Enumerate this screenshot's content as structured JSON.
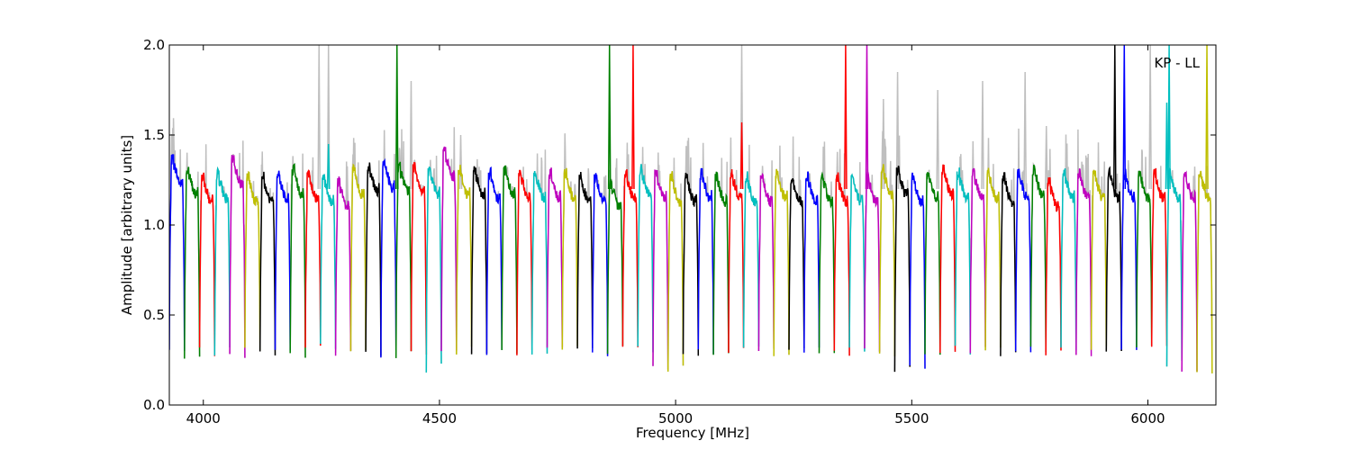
{
  "chart_data": {
    "type": "line",
    "xlabel": "Frequency [MHz]",
    "ylabel": "Amplitude [arbitrary units]",
    "xlim": [
      3928,
      6144
    ],
    "ylim": [
      0.0,
      2.0
    ],
    "x_ticks": [
      4000,
      4500,
      5000,
      5500,
      6000
    ],
    "x_tick_labels": [
      "4000",
      "4500",
      "5000",
      "5500",
      "6000"
    ],
    "y_ticks": [
      0.0,
      0.5,
      1.0,
      1.5,
      2.0
    ],
    "y_tick_labels": [
      "0.0",
      "0.5",
      "1.0",
      "1.5",
      "2.0"
    ],
    "annotation": "KP - LL",
    "grid": false,
    "colors": {
      "raw": "#bfbfbf",
      "cycle": [
        "#0000ff",
        "#008000",
        "#ff0000",
        "#00bfbf",
        "#bf00bf",
        "#bfbf00",
        "#000000"
      ]
    },
    "channel_start": 3928,
    "channel_width": 32,
    "channel_count": 69,
    "channel_levels": [
      1.28,
      1.22,
      1.18,
      1.2,
      1.28,
      1.18,
      1.18,
      1.2,
      1.22,
      1.2,
      1.18,
      1.15,
      1.22,
      1.24,
      1.26,
      1.24,
      1.24,
      1.22,
      1.32,
      1.22,
      1.22,
      1.2,
      1.22,
      1.2,
      1.2,
      1.2,
      1.2,
      1.18,
      1.18,
      1.15,
      1.2,
      1.22,
      1.2,
      1.18,
      1.18,
      1.2,
      1.18,
      1.2,
      1.18,
      1.18,
      1.2,
      1.18,
      1.18,
      1.18,
      1.18,
      1.18,
      1.18,
      1.22,
      1.22,
      1.18,
      1.2,
      1.22,
      1.2,
      1.2,
      1.2,
      1.18,
      1.2,
      1.22,
      1.15,
      1.2,
      1.2,
      1.2,
      1.2,
      1.2,
      1.2,
      1.2,
      1.2,
      1.2,
      1.2
    ],
    "channel_dips": [
      0.3,
      0.27,
      0.3,
      0.3,
      0.28,
      0.29,
      0.29,
      0.3,
      0.28,
      0.3,
      0.32,
      0.3,
      0.3,
      0.3,
      0.29,
      0.28,
      0.28,
      0.2,
      0.3,
      0.3,
      0.3,
      0.3,
      0.3,
      0.3,
      0.3,
      0.3,
      0.3,
      0.3,
      0.3,
      0.3,
      0.3,
      0.3,
      0.2,
      0.2,
      0.3,
      0.3,
      0.3,
      0.3,
      0.3,
      0.3,
      0.3,
      0.3,
      0.3,
      0.3,
      0.3,
      0.3,
      0.3,
      0.3,
      0.2,
      0.22,
      0.3,
      0.3,
      0.3,
      0.3,
      0.3,
      0.3,
      0.3,
      0.3,
      0.3,
      0.3,
      0.3,
      0.3,
      0.3,
      0.3,
      0.3,
      0.3,
      0.24,
      0.2,
      0.2
    ],
    "spikes": [
      {
        "x": 4245,
        "y": 2.0,
        "series": "raw"
      },
      {
        "x": 4265,
        "y": 2.0,
        "series": "raw"
      },
      {
        "x": 4265,
        "y": 1.45,
        "series": "color"
      },
      {
        "x": 4410,
        "y": 2.0,
        "series": "color"
      },
      {
        "x": 4440,
        "y": 1.8,
        "series": "raw"
      },
      {
        "x": 4545,
        "y": 1.5,
        "series": "raw"
      },
      {
        "x": 4860,
        "y": 2.0,
        "series": "color"
      },
      {
        "x": 4910,
        "y": 2.0,
        "series": "color"
      },
      {
        "x": 5140,
        "y": 2.0,
        "series": "raw"
      },
      {
        "x": 5140,
        "y": 1.57,
        "series": "color"
      },
      {
        "x": 5360,
        "y": 2.0,
        "series": "color"
      },
      {
        "x": 5405,
        "y": 2.0,
        "series": "color"
      },
      {
        "x": 5440,
        "y": 1.7,
        "series": "raw"
      },
      {
        "x": 5470,
        "y": 1.85,
        "series": "raw"
      },
      {
        "x": 5555,
        "y": 1.75,
        "series": "raw"
      },
      {
        "x": 5650,
        "y": 1.8,
        "series": "raw"
      },
      {
        "x": 5740,
        "y": 1.85,
        "series": "raw"
      },
      {
        "x": 5785,
        "y": 1.55,
        "series": "raw"
      },
      {
        "x": 5930,
        "y": 2.0,
        "series": "color"
      },
      {
        "x": 5950,
        "y": 2.0,
        "series": "color"
      },
      {
        "x": 6005,
        "y": 2.0,
        "series": "raw"
      },
      {
        "x": 6040,
        "y": 1.68,
        "series": "color"
      },
      {
        "x": 6045,
        "y": 2.0,
        "series": "color"
      },
      {
        "x": 6125,
        "y": 2.0,
        "series": "color"
      }
    ]
  }
}
